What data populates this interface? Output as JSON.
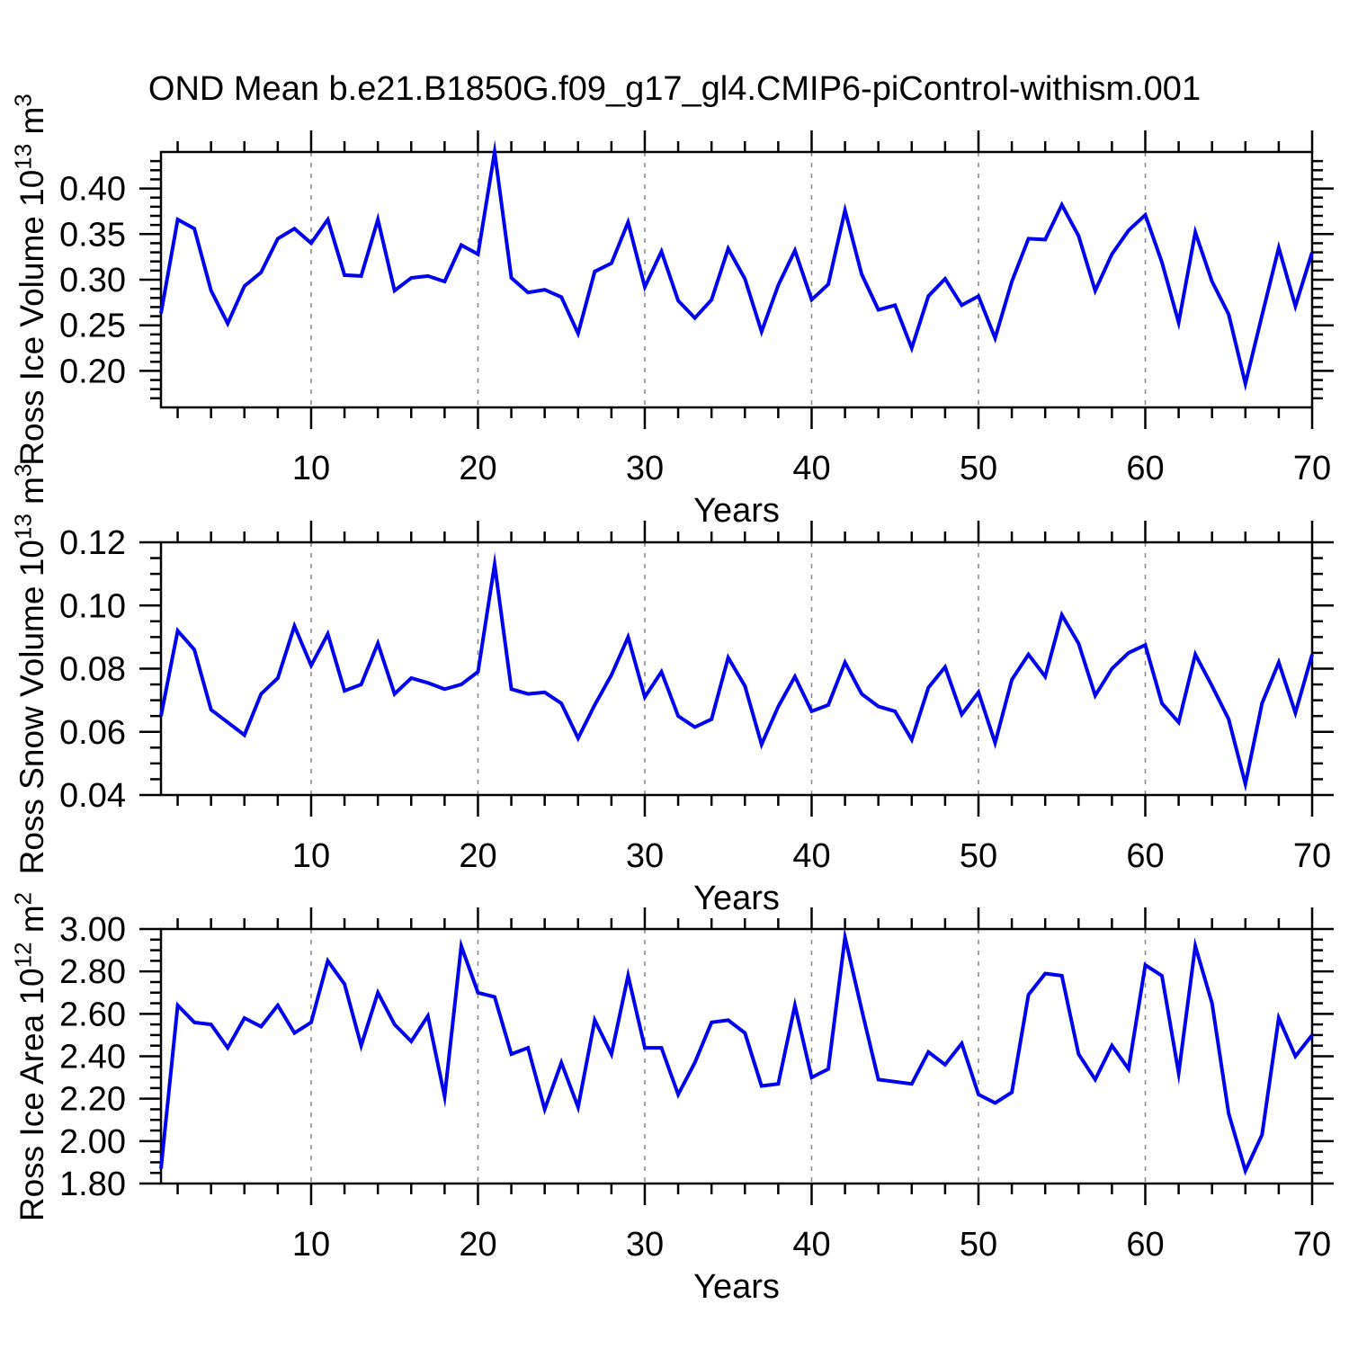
{
  "title": "OND Mean b.e21.B1850G.f09_g17_gl4.CMIP6-piControl-withism.001",
  "line_color": "#0000EE",
  "grid_color": "#858585",
  "years": [
    1,
    2,
    3,
    4,
    5,
    6,
    7,
    8,
    9,
    10,
    11,
    12,
    13,
    14,
    15,
    16,
    17,
    18,
    19,
    20,
    21,
    22,
    23,
    24,
    25,
    26,
    27,
    28,
    29,
    30,
    31,
    32,
    33,
    34,
    35,
    36,
    37,
    38,
    39,
    40,
    41,
    42,
    43,
    44,
    45,
    46,
    47,
    48,
    49,
    50,
    51,
    52,
    53,
    54,
    55,
    56,
    57,
    58,
    59,
    60,
    61,
    62,
    63,
    64,
    65,
    66,
    67,
    68,
    69,
    70
  ],
  "chart_data": [
    {
      "type": "line",
      "ylabel": {
        "text": "Ross Ice Volume 10",
        "exp": "13",
        "unit": " m",
        "unit_exp": "3"
      },
      "xlabel": "Years",
      "ylim": [
        0.16,
        0.44
      ],
      "xlim": [
        1,
        70
      ],
      "ytick_values": [
        0.4,
        0.35,
        0.3,
        0.25,
        0.2
      ],
      "ytick_labels": [
        "0.40",
        "0.35",
        "0.30",
        "0.25",
        "0.20"
      ],
      "yminor_step": 0.01,
      "xtick_values": [
        10,
        20,
        30,
        40,
        50,
        60,
        70
      ],
      "xtick_labels": [
        "10",
        "20",
        "30",
        "40",
        "50",
        "60",
        "70"
      ],
      "xminor_step": 2,
      "gridline_x": [
        10,
        20,
        30,
        40,
        50,
        60
      ],
      "grid": "vertical-dashed",
      "values": [
        0.263,
        0.366,
        0.356,
        0.288,
        0.252,
        0.293,
        0.308,
        0.345,
        0.356,
        0.34,
        0.366,
        0.305,
        0.304,
        0.366,
        0.288,
        0.302,
        0.304,
        0.298,
        0.338,
        0.328,
        0.44,
        0.302,
        0.286,
        0.289,
        0.281,
        0.241,
        0.309,
        0.318,
        0.363,
        0.292,
        0.331,
        0.277,
        0.258,
        0.278,
        0.334,
        0.301,
        0.243,
        0.294,
        0.332,
        0.278,
        0.295,
        0.376,
        0.306,
        0.267,
        0.272,
        0.225,
        0.282,
        0.301,
        0.272,
        0.282,
        0.236,
        0.298,
        0.345,
        0.344,
        0.382,
        0.348,
        0.288,
        0.328,
        0.354,
        0.371,
        0.319,
        0.253,
        0.352,
        0.298,
        0.262,
        0.186,
        0.261,
        0.335,
        0.271,
        0.33
      ]
    },
    {
      "type": "line",
      "ylabel": {
        "text": "Ross Snow Volume 10",
        "exp": "13",
        "unit": " m",
        "unit_exp": "3"
      },
      "xlabel": "Years",
      "ylim": [
        0.04,
        0.12
      ],
      "xlim": [
        1,
        70
      ],
      "ytick_values": [
        0.12,
        0.1,
        0.08,
        0.06,
        0.04
      ],
      "ytick_labels": [
        "0.12",
        "0.10",
        "0.08",
        "0.06",
        "0.04"
      ],
      "yminor_step": 0.005,
      "xtick_values": [
        10,
        20,
        30,
        40,
        50,
        60,
        70
      ],
      "xtick_labels": [
        "10",
        "20",
        "30",
        "40",
        "50",
        "60",
        "70"
      ],
      "xminor_step": 2,
      "gridline_x": [
        10,
        20,
        30,
        40,
        50,
        60
      ],
      "grid": "vertical-dashed",
      "values": [
        0.065,
        0.092,
        0.086,
        0.067,
        0.063,
        0.059,
        0.072,
        0.077,
        0.0935,
        0.081,
        0.091,
        0.073,
        0.075,
        0.088,
        0.072,
        0.077,
        0.0755,
        0.0735,
        0.075,
        0.079,
        0.113,
        0.0735,
        0.072,
        0.0725,
        0.069,
        0.058,
        0.0685,
        0.078,
        0.09,
        0.071,
        0.079,
        0.065,
        0.0615,
        0.064,
        0.0835,
        0.0745,
        0.056,
        0.068,
        0.0775,
        0.0665,
        0.0685,
        0.082,
        0.072,
        0.068,
        0.0665,
        0.0575,
        0.074,
        0.0805,
        0.0655,
        0.0725,
        0.0565,
        0.0765,
        0.0845,
        0.0775,
        0.097,
        0.088,
        0.0715,
        0.08,
        0.085,
        0.0875,
        0.069,
        0.063,
        0.0845,
        0.0745,
        0.064,
        0.0435,
        0.069,
        0.082,
        0.066,
        0.0845
      ]
    },
    {
      "type": "line",
      "ylabel": {
        "text": "Ross Ice Area 10",
        "exp": "12",
        "unit": " m",
        "unit_exp": "2"
      },
      "xlabel": "Years",
      "ylim": [
        1.8,
        3.0
      ],
      "xlim": [
        1,
        70
      ],
      "ytick_values": [
        3.0,
        2.8,
        2.6,
        2.4,
        2.2,
        2.0,
        1.8
      ],
      "ytick_labels": [
        "3.00",
        "2.80",
        "2.60",
        "2.40",
        "2.20",
        "2.00",
        "1.80"
      ],
      "yminor_step": 0.05,
      "xtick_values": [
        10,
        20,
        30,
        40,
        50,
        60,
        70
      ],
      "xtick_labels": [
        "10",
        "20",
        "30",
        "40",
        "50",
        "60",
        "70"
      ],
      "xminor_step": 2,
      "gridline_x": [
        10,
        20,
        30,
        40,
        50,
        60
      ],
      "grid": "vertical-dashed",
      "values": [
        1.87,
        2.64,
        2.56,
        2.55,
        2.44,
        2.58,
        2.54,
        2.64,
        2.51,
        2.56,
        2.85,
        2.74,
        2.45,
        2.7,
        2.55,
        2.47,
        2.59,
        2.21,
        2.92,
        2.7,
        2.68,
        2.41,
        2.44,
        2.15,
        2.37,
        2.16,
        2.57,
        2.41,
        2.78,
        2.44,
        2.44,
        2.22,
        2.37,
        2.56,
        2.57,
        2.51,
        2.26,
        2.27,
        2.64,
        2.3,
        2.34,
        2.96,
        2.62,
        2.29,
        2.28,
        2.27,
        2.42,
        2.36,
        2.46,
        2.22,
        2.18,
        2.23,
        2.69,
        2.79,
        2.78,
        2.41,
        2.29,
        2.45,
        2.34,
        2.83,
        2.78,
        2.32,
        2.92,
        2.65,
        2.13,
        1.86,
        2.03,
        2.58,
        2.4,
        2.5
      ]
    }
  ]
}
